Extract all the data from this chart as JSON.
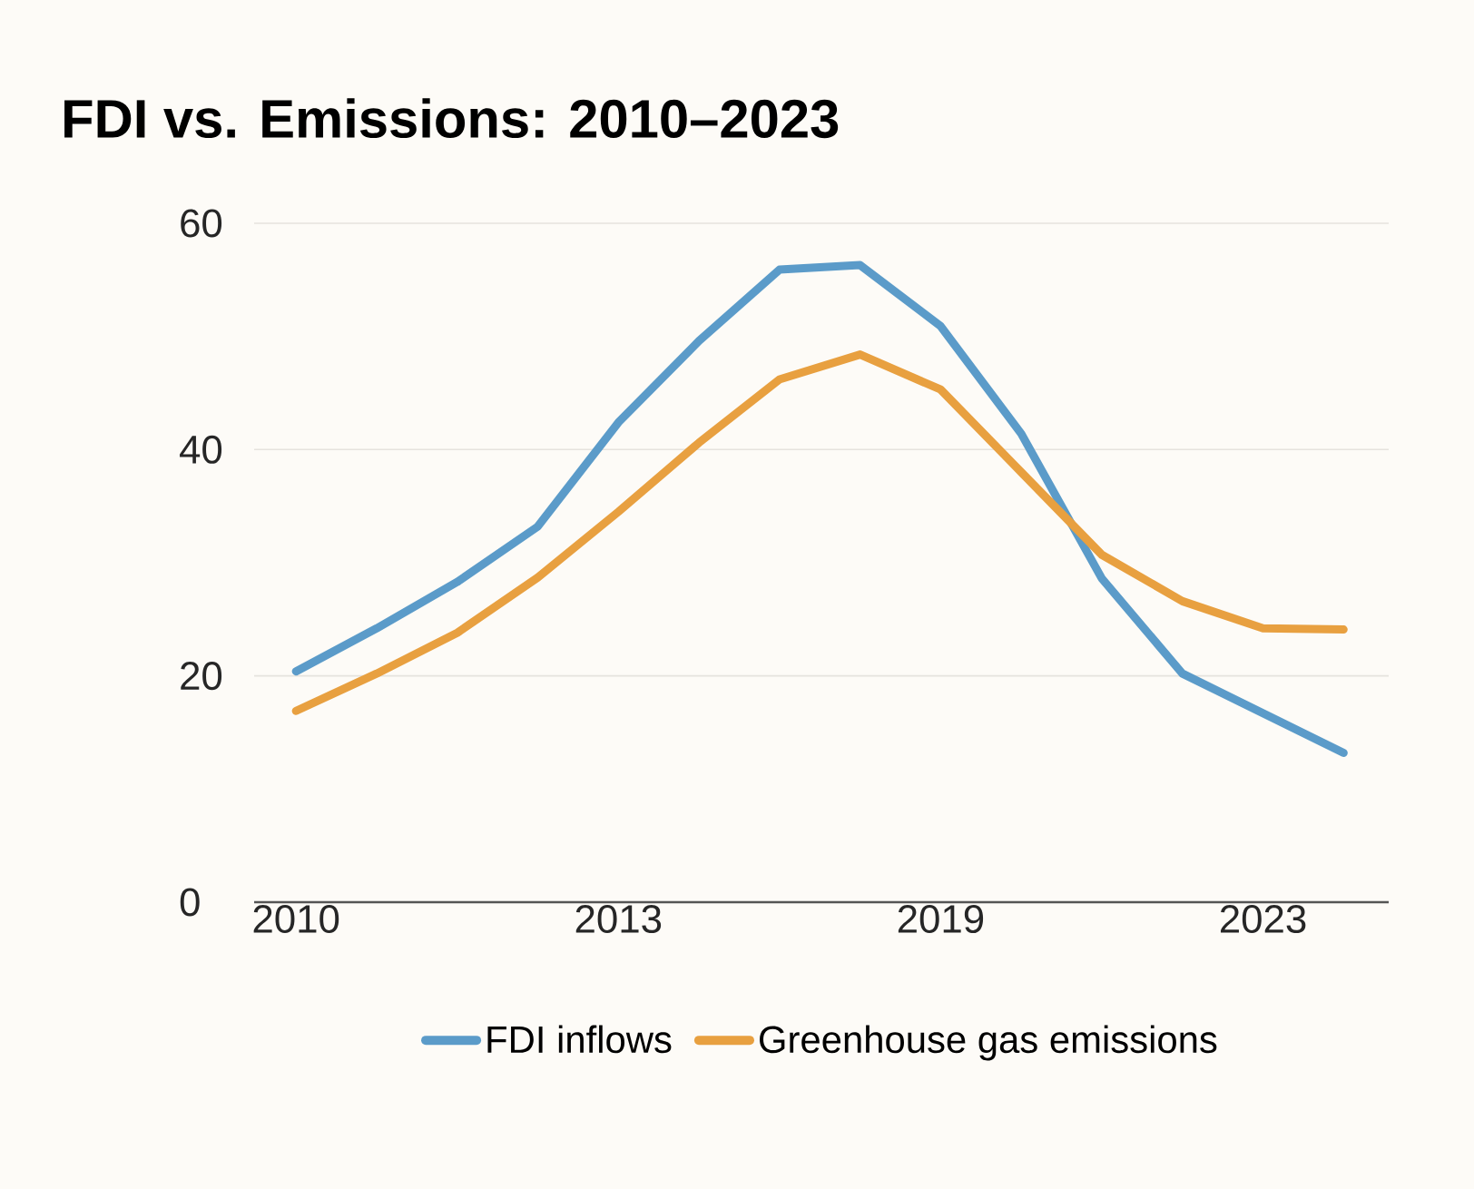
{
  "chart_data": {
    "type": "line",
    "title": "FDI vs. Emissions: 2010–2023",
    "categories": [
      "2010",
      null,
      null,
      null,
      "2013",
      null,
      null,
      null,
      "2019",
      null,
      null,
      null,
      "2023",
      null
    ],
    "series": [
      {
        "name": "FDI inflows",
        "color": "#5b9bc9",
        "values": [
          20.4,
          24.2,
          28.3,
          33.2,
          42.4,
          49.6,
          55.9,
          56.3,
          50.9,
          41.4,
          28.6,
          20.2,
          16.7,
          13.2
        ]
      },
      {
        "name": "Greenhouse gas emissions",
        "color": "#e8a040",
        "values": [
          16.9,
          20.2,
          23.8,
          28.7,
          34.5,
          40.6,
          46.2,
          48.4,
          45.3,
          38.0,
          30.7,
          26.6,
          24.2,
          24.1
        ]
      }
    ],
    "ylim": [
      0,
      60
    ],
    "yticks": [
      0,
      20,
      40,
      60
    ],
    "grid": "y",
    "legend": "bottom",
    "line_style": "solid",
    "marker": "none"
  }
}
